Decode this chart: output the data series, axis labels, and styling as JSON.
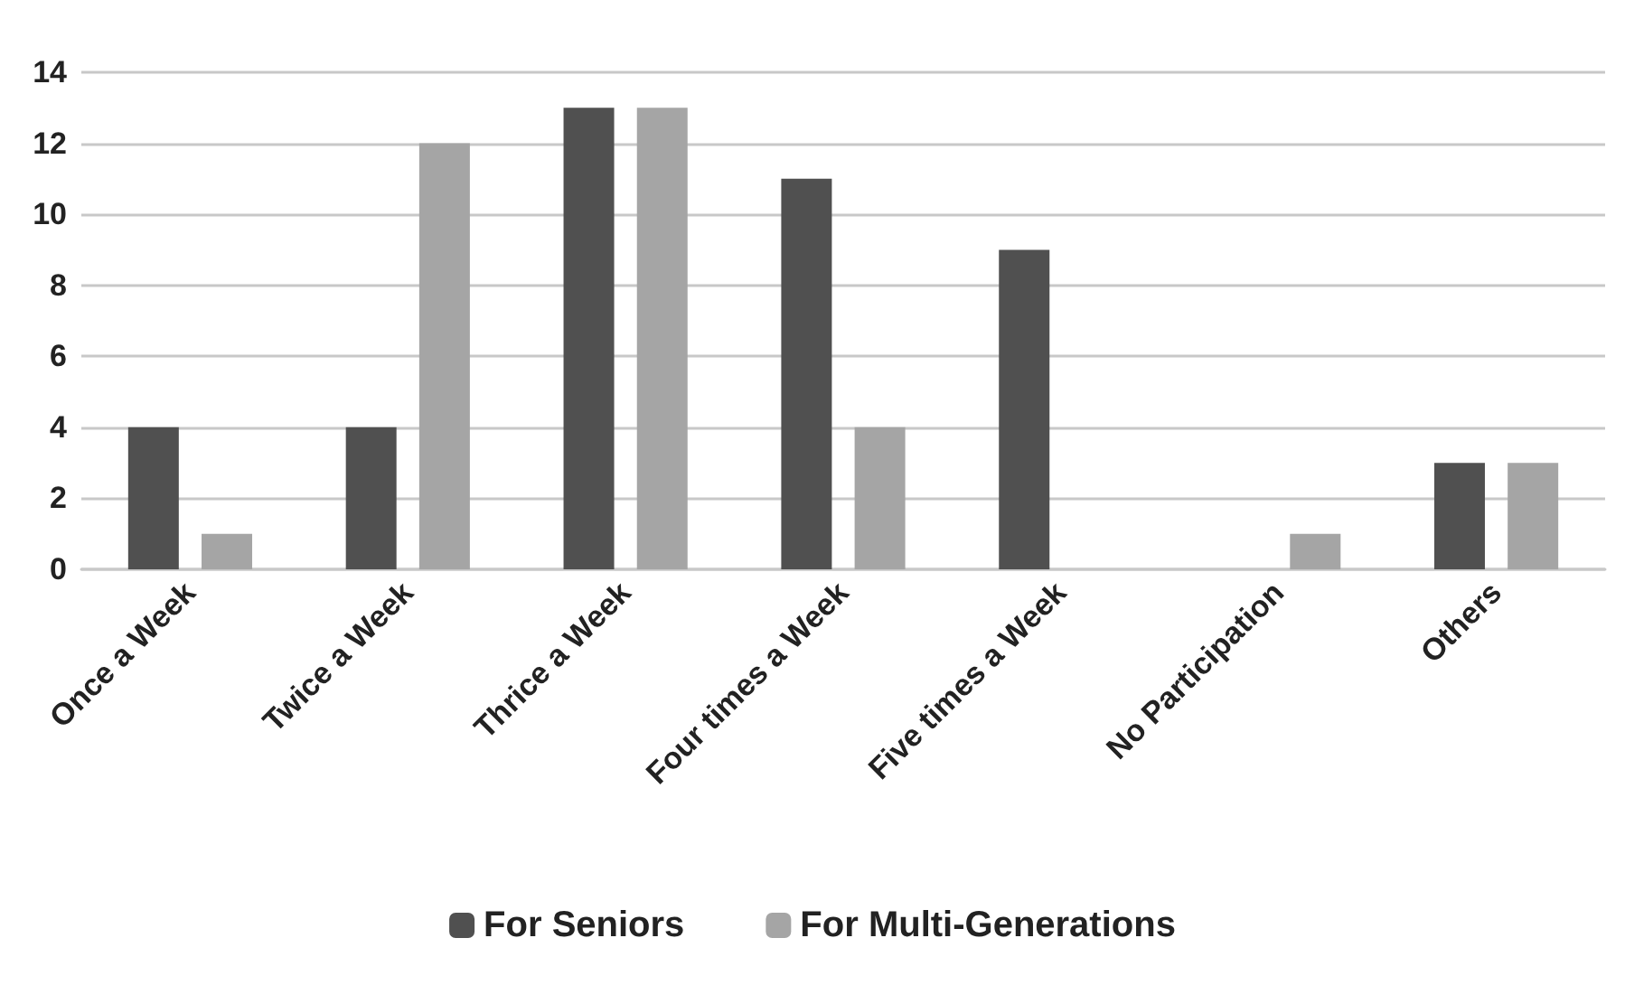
{
  "chart_data": {
    "type": "bar",
    "categories": [
      "Once a Week",
      "Twice a Week",
      "Thrice a Week",
      "Four times a Week",
      "Five times a Week",
      "No Participation",
      "Others"
    ],
    "series": [
      {
        "name": "For Seniors",
        "color": "#505050",
        "values": [
          4,
          4,
          13,
          11,
          9,
          0,
          3
        ]
      },
      {
        "name": "For Multi-Generations",
        "color": "#a5a5a5",
        "values": [
          1,
          12,
          13,
          4,
          0,
          1,
          3
        ]
      }
    ],
    "ylim": [
      0,
      14
    ],
    "yticks": [
      0,
      2,
      4,
      6,
      8,
      10,
      12,
      14
    ],
    "grid": "y",
    "legend": "bottom"
  }
}
